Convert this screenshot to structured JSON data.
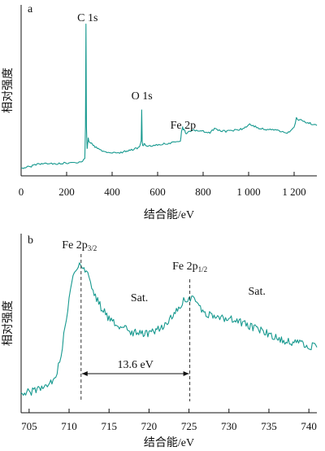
{
  "colors": {
    "curve": "#17998f",
    "axis": "#111111"
  },
  "chart_data": [
    {
      "panel": "a",
      "type": "line",
      "xlabel": "结合能/eV",
      "ylabel": "相对强度",
      "xlim": [
        0,
        1300
      ],
      "xticks": [
        0,
        200,
        400,
        600,
        800,
        1000,
        1200
      ],
      "xtick_labels": [
        "0",
        "200",
        "400",
        "600",
        "800",
        "1 000",
        "1 200"
      ],
      "ylim": [
        0,
        100
      ],
      "grid": false,
      "series": [
        {
          "x": [
            0,
            10,
            20,
            40,
            60,
            70,
            80,
            100,
            150,
            200,
            250,
            270,
            280,
            283,
            285,
            287,
            290,
            292,
            295,
            300,
            320,
            350,
            400,
            450,
            480,
            500,
            520,
            528,
            530,
            532,
            534,
            537,
            540,
            545,
            560,
            600,
            650,
            700,
            705,
            710,
            712,
            715,
            720,
            725,
            730,
            740,
            760,
            800,
            830,
            850,
            860,
            900,
            950,
            980,
            1000,
            1020,
            1050,
            1100,
            1150,
            1180,
            1200,
            1210,
            1220,
            1240,
            1260,
            1280,
            1300
          ],
          "y": [
            2,
            2,
            2.5,
            3,
            4,
            4.5,
            4.5,
            5,
            5,
            5.5,
            6,
            7,
            9,
            30,
            100,
            30,
            15,
            18,
            22,
            20,
            17,
            14,
            12,
            13,
            14,
            15,
            16,
            20,
            42,
            20,
            18,
            17,
            19,
            18,
            17,
            18,
            19,
            20,
            27,
            30,
            29,
            28,
            27,
            25,
            26,
            27,
            28,
            27,
            26,
            29,
            28,
            27,
            28,
            29,
            32,
            31,
            29,
            28,
            27,
            26,
            30,
            36,
            35,
            34,
            33,
            32,
            31
          ]
        }
      ],
      "annotations": [
        {
          "text": "C 1s",
          "x": 285
        },
        {
          "text": "O 1s",
          "x": 531
        },
        {
          "text": "Fe 2p",
          "x": 712
        }
      ]
    },
    {
      "panel": "b",
      "type": "line",
      "xlabel": "结合能/eV",
      "ylabel": "相对强度",
      "xlim": [
        704,
        741
      ],
      "xticks": [
        705,
        710,
        715,
        720,
        725,
        730,
        735,
        740
      ],
      "xtick_labels": [
        "705",
        "710",
        "715",
        "720",
        "725",
        "730",
        "735",
        "740"
      ],
      "ylim": [
        0,
        100
      ],
      "grid": false,
      "series": [
        {
          "x": [
            704,
            705,
            706,
            707,
            708,
            708.5,
            709,
            709.5,
            710,
            710.5,
            711,
            711.3,
            711.6,
            712,
            712.5,
            713,
            714,
            715,
            716,
            717,
            718,
            719,
            720,
            721,
            722,
            723,
            724,
            724.5,
            725,
            725.5,
            726,
            727,
            728,
            729,
            730,
            731,
            732,
            733,
            734,
            735,
            736,
            737,
            738,
            739,
            740,
            741
          ],
          "y": [
            8,
            9,
            10,
            12,
            16,
            22,
            32,
            48,
            66,
            79,
            85,
            87,
            86,
            83,
            77,
            70,
            60,
            53,
            49,
            47,
            45,
            44,
            44,
            46,
            50,
            56,
            62,
            65,
            66,
            65,
            62,
            57,
            54,
            54,
            53,
            52,
            50,
            48,
            46,
            44,
            42,
            40,
            39,
            38,
            37,
            36
          ]
        }
      ],
      "annotations": [
        {
          "text": "Fe 2p",
          "sub": "3/2",
          "x": 711.3
        },
        {
          "text": "Fe 2p",
          "sub": "1/2",
          "x": 725.1
        },
        {
          "text": "Sat.",
          "x": 718.8
        },
        {
          "text": "Sat.",
          "x": 733.5
        }
      ],
      "splitting": {
        "label": "13.6 eV",
        "x1": 711.5,
        "x2": 725.1
      }
    }
  ]
}
